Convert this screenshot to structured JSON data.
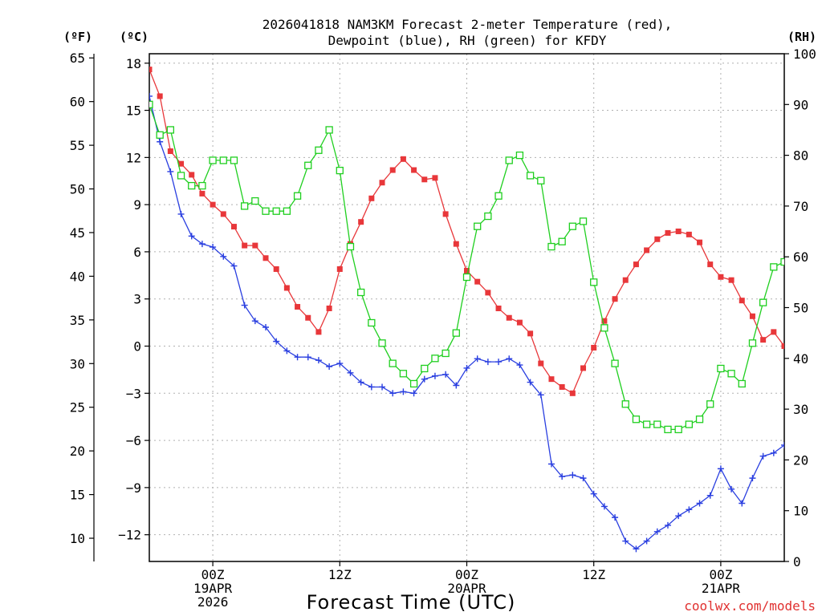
{
  "colors": {
    "temperature": "#e8373a",
    "dewpoint": "#2a3fe0",
    "rh": "#1fcf1f",
    "grid": "#b0b0b0",
    "credit": "#e0302f"
  },
  "chart_data": {
    "type": "line",
    "title_line1": "2026041818 NAM3KM Forecast 2-meter Temperature (red),",
    "title_line2": "Dewpoint (blue), RH (green) for KFDY",
    "xlabel": "Forecast Time (UTC)",
    "credit": "coolwx.com/models",
    "left_outer_unit": "(ºF)",
    "left_inner_unit": "(ºC)",
    "right_unit": "(RH)",
    "x_unit": "forecast hour from 2026-04-18 18Z",
    "xlim": [
      0,
      60
    ],
    "ylim_c": [
      -13.7,
      18.6
    ],
    "ylim_rh": [
      0,
      100
    ],
    "fahrenheit_ticks": [
      "10",
      "15",
      "20",
      "25",
      "30",
      "35",
      "40",
      "45",
      "50",
      "55",
      "60",
      "65"
    ],
    "celsius_ticks": [
      "−12",
      "−9",
      "−6",
      "−3",
      "0",
      "3",
      "6",
      "9",
      "12",
      "15",
      "18"
    ],
    "rh_ticks": [
      "0",
      "10",
      "20",
      "30",
      "40",
      "50",
      "60",
      "70",
      "80",
      "90",
      "100"
    ],
    "x_ticks": [
      {
        "hour": 6,
        "line1": "00Z",
        "line2": "19APR",
        "line3": "2026"
      },
      {
        "hour": 18,
        "line1": "12Z",
        "line2": "",
        "line3": ""
      },
      {
        "hour": 30,
        "line1": "00Z",
        "line2": "20APR",
        "line3": ""
      },
      {
        "hour": 42,
        "line1": "12Z",
        "line2": "",
        "line3": ""
      },
      {
        "hour": 54,
        "line1": "00Z",
        "line2": "21APR",
        "line3": ""
      }
    ],
    "series": [
      {
        "name": "Temperature",
        "unit": "°C",
        "marker": "filled-square",
        "x": [
          0,
          1,
          2,
          3,
          4,
          5,
          6,
          7,
          8,
          9,
          10,
          11,
          12,
          13,
          14,
          15,
          16,
          17,
          18,
          19,
          20,
          21,
          22,
          23,
          24,
          25,
          26,
          27,
          28,
          29,
          30,
          31,
          32,
          33,
          34,
          35,
          36,
          37,
          38,
          39,
          40,
          41,
          42,
          43,
          44,
          45,
          46,
          47,
          48,
          49,
          50,
          51,
          52,
          53,
          54,
          55,
          56,
          57,
          58,
          59,
          60
        ],
        "values": [
          17.6,
          15.9,
          12.4,
          11.6,
          10.9,
          9.7,
          9.0,
          8.4,
          7.6,
          6.4,
          6.4,
          5.6,
          4.9,
          3.7,
          2.5,
          1.8,
          0.9,
          2.4,
          4.9,
          6.5,
          7.9,
          9.4,
          10.4,
          11.2,
          11.9,
          11.2,
          10.6,
          10.7,
          8.4,
          6.5,
          4.8,
          4.1,
          3.4,
          2.4,
          1.8,
          1.5,
          0.8,
          -1.1,
          -2.1,
          -2.6,
          -3.0,
          -1.4,
          -0.1,
          1.6,
          3.0,
          4.2,
          5.2,
          6.1,
          6.8,
          7.2,
          7.3,
          7.1,
          6.6,
          5.2,
          4.4,
          4.2,
          2.9,
          1.9,
          0.4,
          0.9,
          0.0
        ]
      },
      {
        "name": "Dewpoint",
        "unit": "°C",
        "marker": "plus",
        "x": [
          0,
          1,
          2,
          3,
          4,
          5,
          6,
          7,
          8,
          9,
          10,
          11,
          12,
          13,
          14,
          15,
          16,
          17,
          18,
          19,
          20,
          21,
          22,
          23,
          24,
          25,
          26,
          27,
          28,
          29,
          30,
          31,
          32,
          33,
          34,
          35,
          36,
          37,
          38,
          39,
          40,
          41,
          42,
          43,
          44,
          45,
          46,
          47,
          48,
          49,
          50,
          51,
          52,
          53,
          54,
          55,
          56,
          57,
          58,
          59,
          60
        ],
        "values": [
          15.9,
          13.0,
          11.1,
          8.4,
          7.0,
          6.5,
          6.3,
          5.7,
          5.1,
          2.6,
          1.6,
          1.2,
          0.3,
          -0.3,
          -0.7,
          -0.7,
          -0.9,
          -1.3,
          -1.1,
          -1.7,
          -2.3,
          -2.6,
          -2.6,
          -3.0,
          -2.9,
          -3.0,
          -2.1,
          -1.9,
          -1.8,
          -2.5,
          -1.4,
          -0.8,
          -1.0,
          -1.0,
          -0.8,
          -1.2,
          -2.3,
          -3.1,
          -7.5,
          -8.3,
          -8.2,
          -8.4,
          -9.4,
          -10.2,
          -10.9,
          -12.4,
          -12.9,
          -12.4,
          -11.8,
          -11.4,
          -10.8,
          -10.4,
          -10.0,
          -9.5,
          -7.8,
          -9.1,
          -10.0,
          -8.4,
          -7.0,
          -6.8,
          -6.3
        ]
      },
      {
        "name": "Relative Humidity",
        "unit": "%",
        "marker": "open-square",
        "x": [
          0,
          1,
          2,
          3,
          4,
          5,
          6,
          7,
          8,
          9,
          10,
          11,
          12,
          13,
          14,
          15,
          16,
          17,
          18,
          19,
          20,
          21,
          22,
          23,
          24,
          25,
          26,
          27,
          28,
          29,
          30,
          31,
          32,
          33,
          34,
          35,
          36,
          37,
          38,
          39,
          40,
          41,
          42,
          43,
          44,
          45,
          46,
          47,
          48,
          49,
          50,
          51,
          52,
          53,
          54,
          55,
          56,
          57,
          58,
          59,
          60
        ],
        "values": [
          90,
          84,
          85,
          76,
          74,
          74,
          79,
          79,
          79,
          70,
          71,
          69,
          69,
          69,
          72,
          78,
          81,
          85,
          77,
          62,
          53,
          47,
          43,
          39,
          37,
          35,
          38,
          40,
          41,
          45,
          56,
          66,
          68,
          72,
          79,
          80,
          76,
          75,
          62,
          63,
          66,
          67,
          55,
          46,
          39,
          31,
          28,
          27,
          27,
          26,
          26,
          27,
          28,
          31,
          38,
          37,
          35,
          43,
          51,
          58,
          59
        ]
      }
    ]
  }
}
